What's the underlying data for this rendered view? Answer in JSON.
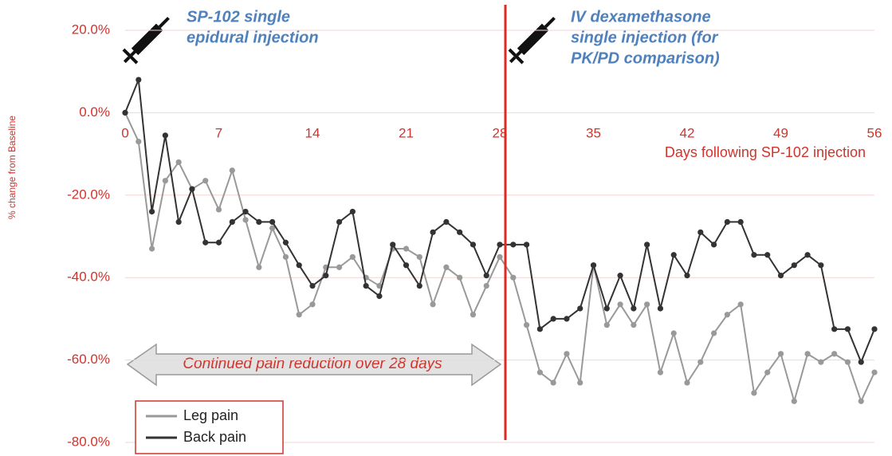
{
  "chart_data": {
    "type": "line",
    "y_label": "% change from Baseline",
    "x_label": "Days following SP-102 injection",
    "annotations": [
      "SP-102 single",
      "epidural injection",
      "IV dexamethasone",
      "single injection (for",
      "PK/PD comparison)",
      "Continued pain reduction over 28 days"
    ],
    "x": [
      0,
      1,
      2,
      3,
      4,
      5,
      6,
      7,
      8,
      9,
      10,
      11,
      12,
      13,
      14,
      15,
      16,
      17,
      18,
      19,
      20,
      21,
      22,
      23,
      24,
      25,
      26,
      27,
      28,
      29,
      30,
      31,
      32,
      33,
      34,
      35,
      36,
      37,
      38,
      39,
      40,
      41,
      42,
      43,
      44,
      45,
      46,
      47,
      48,
      49,
      50,
      51,
      52,
      53,
      54,
      55,
      56
    ],
    "series": [
      {
        "name": "Leg pain",
        "color": "#999999",
        "values": [
          0,
          -7,
          -33,
          -16.5,
          -12,
          -18.5,
          -16.5,
          -23.5,
          -14,
          -26,
          -37.5,
          -28,
          -35,
          -49,
          -46.5,
          -37.5,
          -37.5,
          -35,
          -40,
          -42,
          -33,
          -33,
          -35,
          -46.5,
          -37.5,
          -40,
          -49,
          -42,
          -35,
          -40,
          -51.5,
          -63,
          -65.5,
          -58.5,
          -65.5,
          -37,
          -51.5,
          -46.5,
          -51.5,
          -46.5,
          -63,
          -53.5,
          -65.5,
          -60.5,
          -53.5,
          -49,
          -46.5,
          -68,
          -63,
          -58.5,
          -70,
          -58.5,
          -60.5,
          -58.5,
          -60.5,
          -70,
          -63
        ]
      },
      {
        "name": "Back pain",
        "color": "#333333",
        "values": [
          0,
          8,
          -24,
          -5.5,
          -26.5,
          -18.5,
          -31.5,
          -31.5,
          -26.5,
          -24,
          -26.5,
          -26.5,
          -31.5,
          -37,
          -42,
          -39.5,
          -26.5,
          -24,
          -42,
          -44.5,
          -32,
          -37,
          -42,
          -29,
          -26.5,
          -29,
          -32,
          -39.5,
          -32,
          -32,
          -32,
          -52.5,
          -50,
          -50,
          -47.5,
          -37,
          -47.5,
          -39.5,
          -47.5,
          -32,
          -47.5,
          -34.5,
          -39.5,
          -29,
          -32,
          -26.5,
          -26.5,
          -34.5,
          -34.5,
          -39.5,
          -37,
          -34.5,
          -37,
          -52.5,
          -52.5,
          -60.5,
          -52.5
        ]
      }
    ],
    "xlim": [
      0,
      56
    ],
    "xticks": [
      0,
      7,
      14,
      21,
      28,
      35,
      42,
      49,
      56
    ],
    "ylim": [
      -80,
      20
    ],
    "yticks": [
      {
        "value": -80,
        "label": "-80.0%"
      },
      {
        "value": -60,
        "label": "-60.0%"
      },
      {
        "value": -40,
        "label": "-40.0%"
      },
      {
        "value": -20,
        "label": "-20.0%"
      },
      {
        "value": 0,
        "label": "0.0%"
      },
      {
        "value": 20,
        "label": "20.0%"
      }
    ],
    "grid": true
  }
}
